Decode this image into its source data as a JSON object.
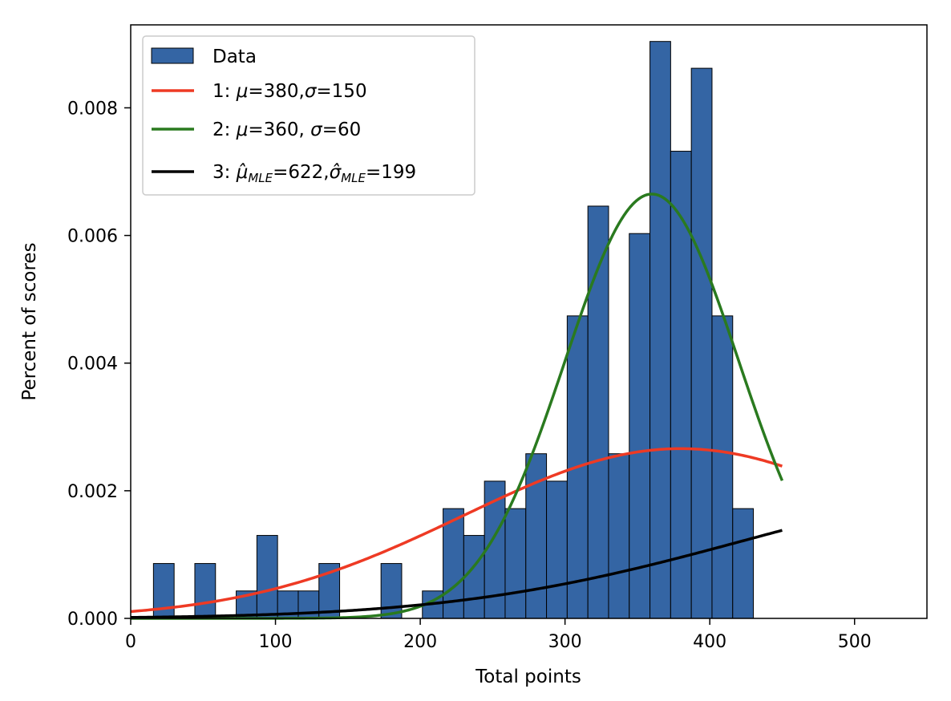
{
  "chart_data": {
    "type": "bar",
    "xlabel": "Total points",
    "ylabel": "Percent of scores",
    "xlim": [
      0,
      550
    ],
    "ylim": [
      0,
      0.0093
    ],
    "xticks": [
      0,
      100,
      200,
      300,
      400,
      500
    ],
    "xtick_labels": [
      "0",
      "100",
      "200",
      "300",
      "400",
      "500"
    ],
    "yticks": [
      0,
      0.002,
      0.004,
      0.006,
      0.008
    ],
    "ytick_labels": [
      "0.000",
      "0.002",
      "0.004",
      "0.006",
      "0.008"
    ],
    "grid": false,
    "legend_position": "top-left",
    "histogram": {
      "name": "Data",
      "color": "#3465a4",
      "bin_width": 14.29,
      "bin_start": 15.71,
      "values": [
        0.00086,
        0,
        0.00086,
        0,
        0.00043,
        0.0013,
        0.00043,
        0.00043,
        0.00086,
        0,
        0,
        0.00086,
        0,
        0.00043,
        0.00172,
        0.0013,
        0.00215,
        0.00172,
        0.00258,
        0.00215,
        0.00474,
        0.00646,
        0.00258,
        0.00603,
        0.00904,
        0.00732,
        0.00862,
        0.00474,
        0.00172
      ]
    },
    "series": [
      {
        "name": "1: μ=380,σ=150",
        "type": "normal_pdf",
        "mu": 380,
        "sigma": 150,
        "x_range": [
          0,
          450
        ],
        "color": "#ee3a24"
      },
      {
        "name": "2: μ=360, σ=60",
        "type": "normal_pdf",
        "mu": 360,
        "sigma": 60,
        "x_range": [
          0,
          450
        ],
        "color": "#2a7a1f"
      },
      {
        "name": "3: μ̂MLE=622,σ̂MLE=199",
        "type": "normal_pdf",
        "mu": 622,
        "sigma": 199,
        "x_range": [
          0,
          450
        ],
        "color": "#000000"
      }
    ]
  },
  "legend": {
    "data_label": "Data",
    "s1_prefix": "1: ",
    "s1_mu_sym": "μ",
    "s1_mid": "=380,",
    "s1_sigma_sym": "σ",
    "s1_end": "=150",
    "s2_prefix": "2: ",
    "s2_mu_sym": "μ",
    "s2_mid": "=360, ",
    "s2_sigma_sym": "σ",
    "s2_end": "=60",
    "s3_prefix": "3: ",
    "s3_mu_sym": "μ̂",
    "s3_mu_sub": "MLE",
    "s3_mid": "=622,",
    "s3_sigma_sym": "σ̂",
    "s3_sigma_sub": "MLE",
    "s3_end": "=199"
  }
}
